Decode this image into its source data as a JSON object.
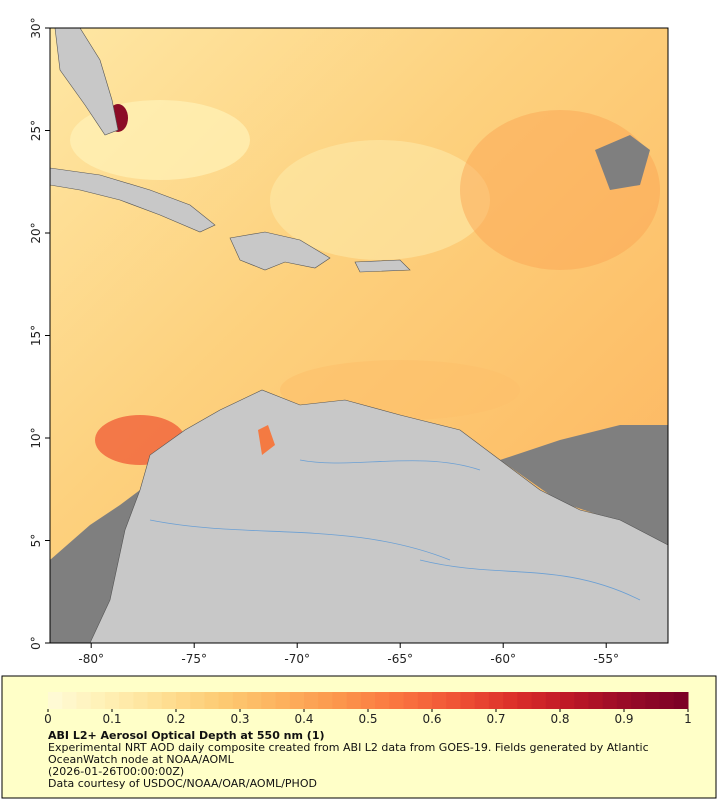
{
  "map": {
    "lonlim": [
      -82,
      -52
    ],
    "latlim": [
      0,
      30
    ],
    "lon_ticks": [
      {
        "value": -80,
        "label": "-80°"
      },
      {
        "value": -75,
        "label": "-75°"
      },
      {
        "value": -70,
        "label": "-70°"
      },
      {
        "value": -65,
        "label": "-65°"
      },
      {
        "value": -60,
        "label": "-60°"
      },
      {
        "value": -55,
        "label": "-55°"
      }
    ],
    "lat_ticks": [
      {
        "value": 0,
        "label": "0°"
      },
      {
        "value": 5,
        "label": "5°"
      },
      {
        "value": 10,
        "label": "10°"
      },
      {
        "value": 15,
        "label": "15°"
      },
      {
        "value": 20,
        "label": "20°"
      },
      {
        "value": 25,
        "label": "25°"
      },
      {
        "value": 30,
        "label": "30°"
      }
    ]
  },
  "colorbar": {
    "clim": [
      0,
      1
    ],
    "ticks": [
      0,
      0.1,
      0.2,
      0.3,
      0.4,
      0.5,
      0.6,
      0.7,
      0.8,
      0.9,
      1
    ],
    "colormap": [
      "#fffbd8",
      "#fff0b4",
      "#fedf93",
      "#fdca72",
      "#fdb25e",
      "#fc964c",
      "#fa7640",
      "#f05436",
      "#dc2f2a",
      "#bd1726",
      "#960a27",
      "#7a0025"
    ]
  },
  "caption": {
    "title": "ABI L2+ Aerosol Optical Depth at 550 nm (1)",
    "description": "Experimental NRT AOD daily composite created from ABI L2 data from GOES-19. Fields generated by Atlantic OceanWatch node at NOAA/AOML",
    "timestamp": "(2026-01-26T00:00:00Z)",
    "credit": "Data courtesy of USDOC/NOAA/OAR/AOML/PHOD"
  }
}
